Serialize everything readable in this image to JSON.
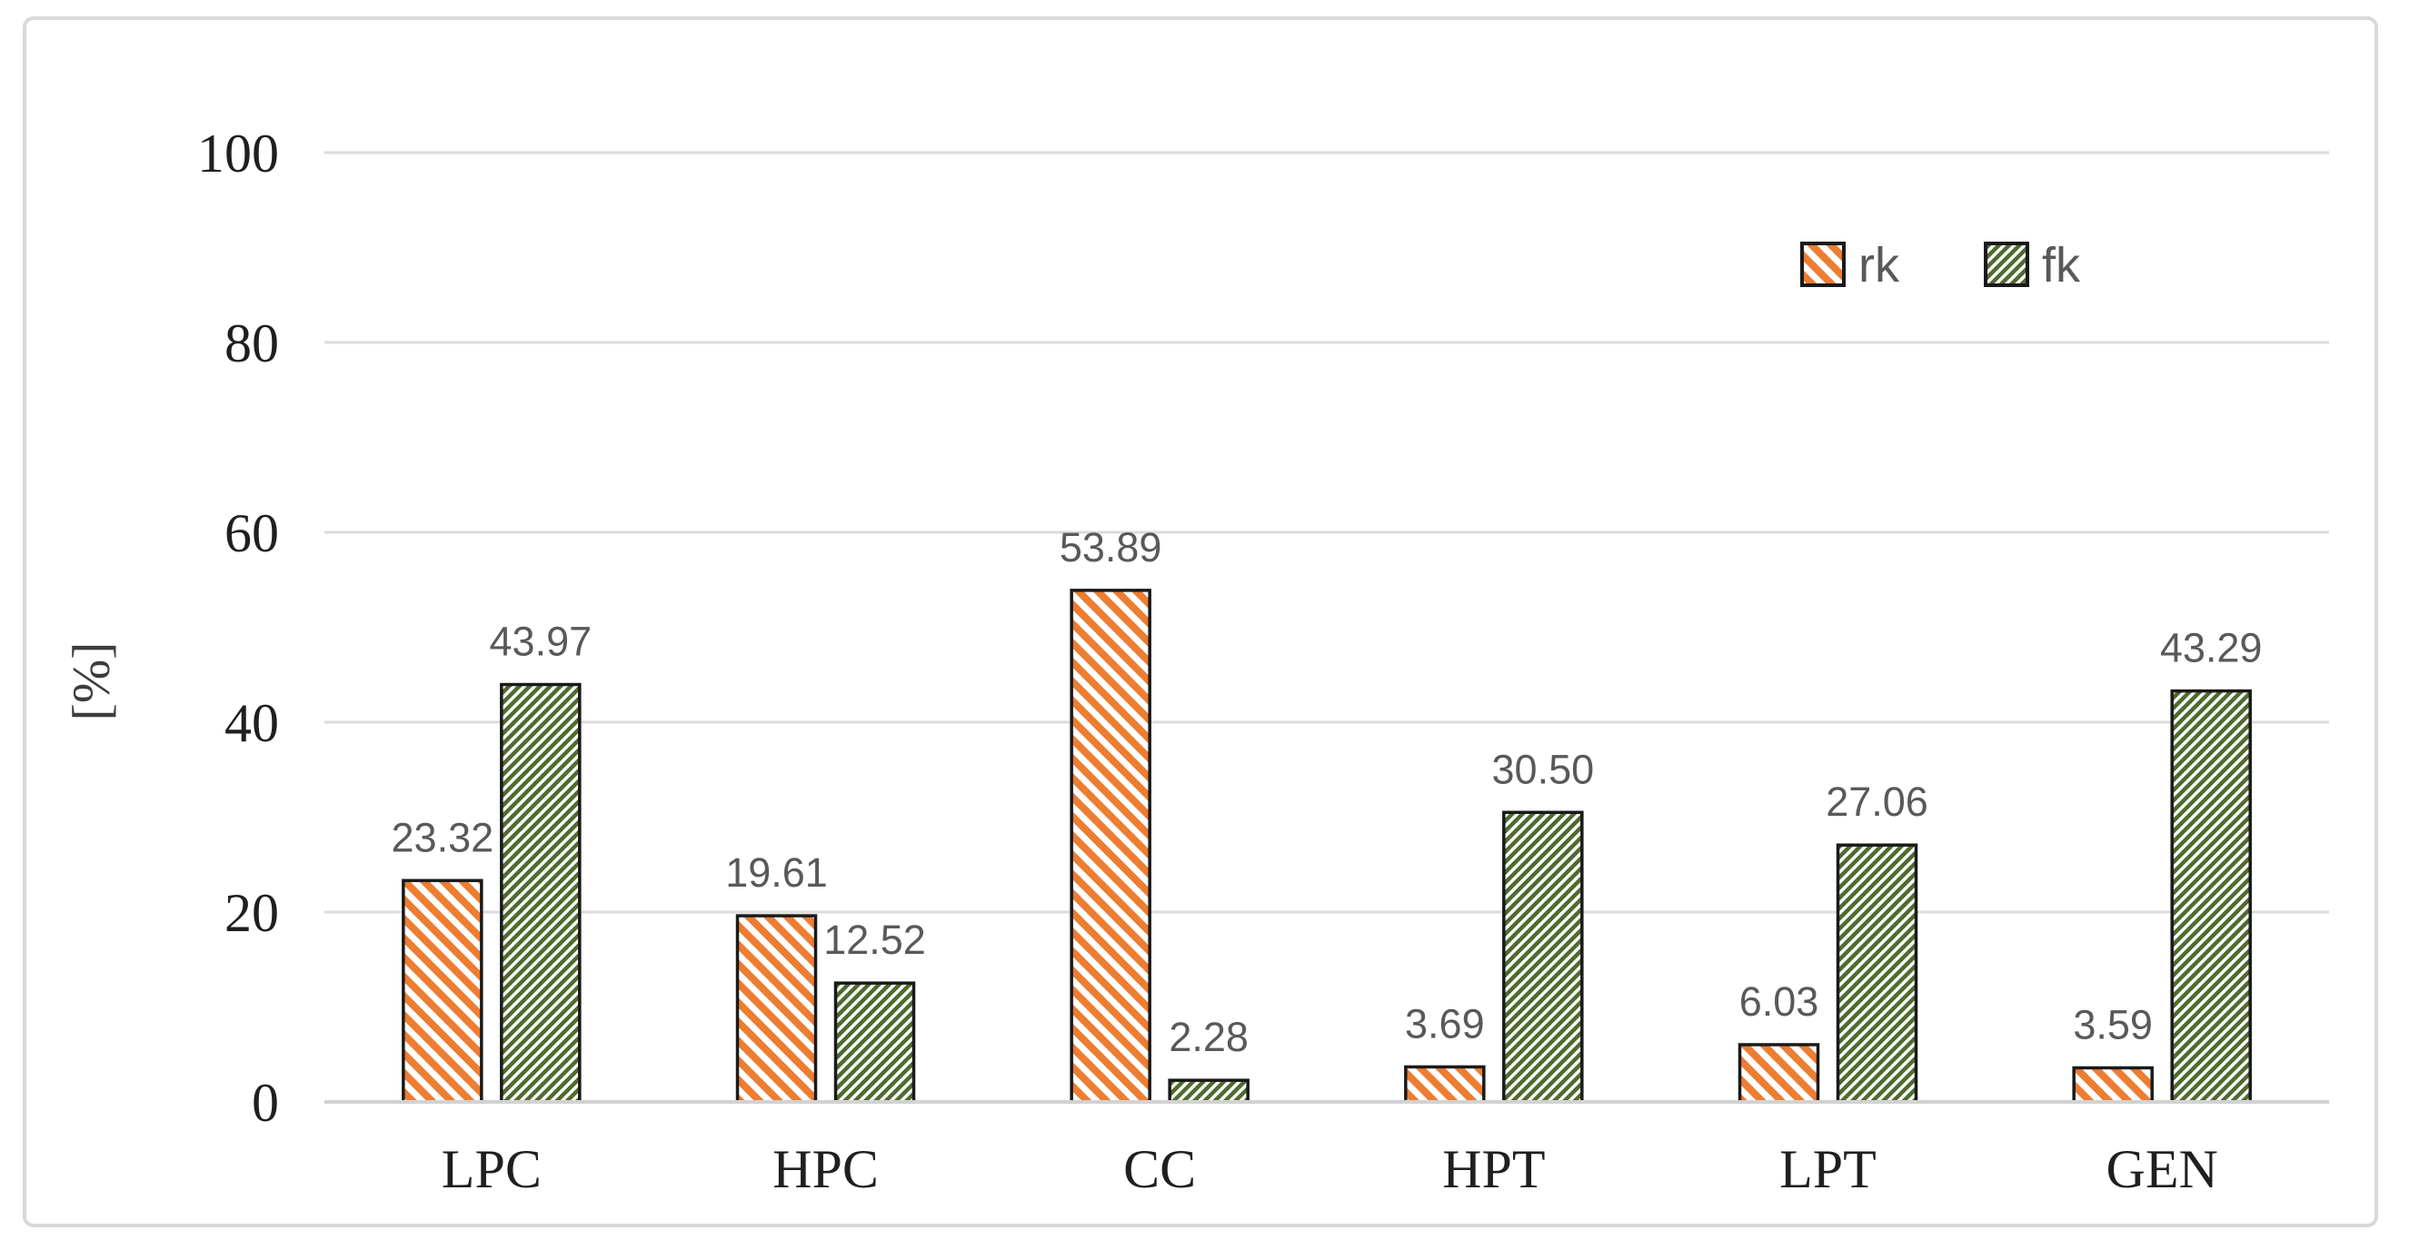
{
  "chart_data": {
    "type": "bar",
    "categories": [
      "LPC",
      "HPC",
      "CC",
      "HPT",
      "LPT",
      "GEN"
    ],
    "series": [
      {
        "name": "rk",
        "values": [
          23.32,
          19.61,
          53.89,
          3.69,
          6.03,
          3.59
        ],
        "labels": [
          "23.32",
          "19.61",
          "53.89",
          "3.69",
          "6.03",
          "3.59"
        ],
        "color": "#ED7D31",
        "hatch": "\\"
      },
      {
        "name": "fk",
        "values": [
          43.97,
          12.52,
          2.28,
          30.5,
          27.06,
          43.29
        ],
        "labels": [
          "43.97",
          "12.52",
          "2.28",
          "30.50",
          "27.06",
          "43.29"
        ],
        "color": "#4F6B2E",
        "hatch": "/"
      }
    ],
    "title": "",
    "xlabel": "",
    "ylabel": "[%]",
    "yticks": [
      "0",
      "20",
      "40",
      "60",
      "80",
      "100"
    ],
    "ylim": [
      0,
      100
    ],
    "grid": true,
    "legend_position": "top-right",
    "colors": {
      "background": "#FFFFFF",
      "frame_border": "#D9D9D9",
      "gridline": "#DBDBDB",
      "baseline": "#D2D2D2",
      "bar_outline": "#1A1A1A",
      "axis_text": "#1F1F1F",
      "data_label_text": "#595959",
      "legend_text": "#595959",
      "hatch_background": "#FFFFFF"
    }
  }
}
